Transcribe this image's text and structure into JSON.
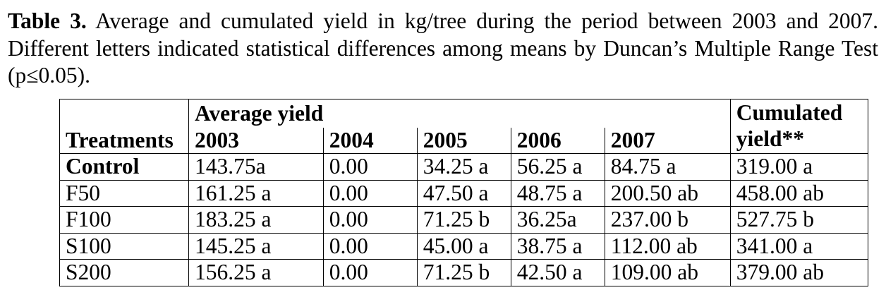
{
  "caption": {
    "label": "Table 3.",
    "text": " Average and cumulated yield in kg/tree during the period between 2003 and 2007. Different letters indicated statistical differences among means by Duncan’s Multiple Range Test (p≤0.05)."
  },
  "table": {
    "group_header": "Average yield",
    "cumulated_header_line1": "Cumulated",
    "cumulated_header_line2": "yield**",
    "treatments_header": "Treatments",
    "years": [
      "2003",
      "2004",
      "2005",
      "2006",
      "2007"
    ],
    "rows": [
      {
        "treatment": "Control",
        "bold": true,
        "values": [
          "143.75a",
          "0.00",
          "34.25 a",
          "56.25 a",
          "84.75 a"
        ],
        "cumulated": "319.00 a"
      },
      {
        "treatment": "F50",
        "bold": false,
        "values": [
          "161.25 a",
          "0.00",
          "47.50 a",
          "48.75 a",
          "200.50 ab"
        ],
        "cumulated": "458.00 ab"
      },
      {
        "treatment": "F100",
        "bold": false,
        "values": [
          "183.25 a",
          "0.00",
          "71.25 b",
          "36.25a",
          "237.00 b"
        ],
        "cumulated": "527.75 b"
      },
      {
        "treatment": "S100",
        "bold": false,
        "values": [
          "145.25 a",
          "0.00",
          "45.00 a",
          "38.75 a",
          "112.00 ab"
        ],
        "cumulated": "341.00 a"
      },
      {
        "treatment": "S200",
        "bold": false,
        "values": [
          "156.25 a",
          "0.00",
          "71.25 b",
          "42.50 a",
          "109.00 ab"
        ],
        "cumulated": "379.00 ab"
      }
    ]
  }
}
